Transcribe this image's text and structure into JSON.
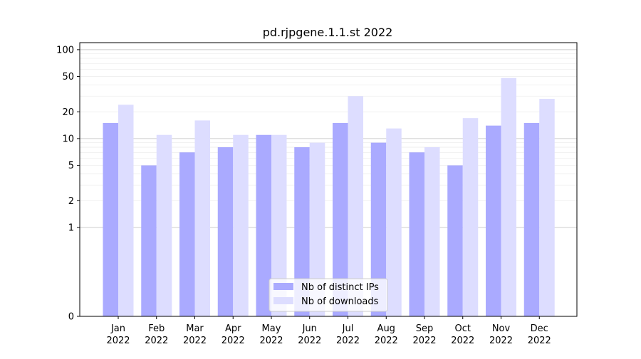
{
  "chart_data": {
    "type": "bar",
    "title": "pd.rjpgene.1.1.st 2022",
    "xlabel": "",
    "ylabel": "",
    "yscale": "symlog",
    "ylim": [
      0,
      120
    ],
    "y_ticks": [
      {
        "value": 0,
        "label": "0"
      },
      {
        "value": 1,
        "label": "1"
      },
      {
        "value": 2,
        "label": "2"
      },
      {
        "value": 5,
        "label": "5"
      },
      {
        "value": 10,
        "label": "10"
      },
      {
        "value": 20,
        "label": "20"
      },
      {
        "value": 50,
        "label": "50"
      },
      {
        "value": 100,
        "label": "100"
      }
    ],
    "grid": true,
    "legend_position": "bottom-center",
    "categories": [
      {
        "month": "Jan",
        "year": "2022"
      },
      {
        "month": "Feb",
        "year": "2022"
      },
      {
        "month": "Mar",
        "year": "2022"
      },
      {
        "month": "Apr",
        "year": "2022"
      },
      {
        "month": "May",
        "year": "2022"
      },
      {
        "month": "Jun",
        "year": "2022"
      },
      {
        "month": "Jul",
        "year": "2022"
      },
      {
        "month": "Aug",
        "year": "2022"
      },
      {
        "month": "Sep",
        "year": "2022"
      },
      {
        "month": "Oct",
        "year": "2022"
      },
      {
        "month": "Nov",
        "year": "2022"
      },
      {
        "month": "Dec",
        "year": "2022"
      }
    ],
    "series": [
      {
        "name": "Nb of distinct IPs",
        "color": "#aaaaff",
        "values": [
          15,
          5,
          7,
          8,
          11,
          8,
          15,
          9,
          7,
          5,
          14,
          15
        ]
      },
      {
        "name": "Nb of downloads",
        "color": "#ddddff",
        "values": [
          24,
          11,
          16,
          11,
          11,
          9,
          30,
          13,
          8,
          17,
          48,
          28
        ]
      }
    ]
  }
}
